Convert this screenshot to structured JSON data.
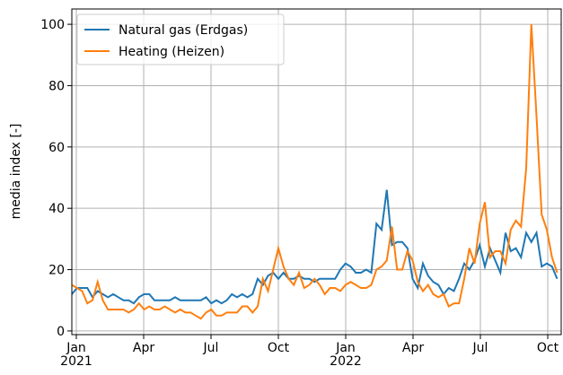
{
  "chart_data": {
    "type": "line",
    "ylabel": "media index [-]",
    "x": [
      -0.2,
      0.03,
      0.26,
      0.49,
      0.72,
      0.95,
      1.18,
      1.41,
      1.64,
      1.87,
      2.1,
      2.33,
      2.56,
      2.79,
      3.02,
      3.25,
      3.48,
      3.71,
      3.94,
      4.17,
      4.4,
      4.63,
      4.86,
      5.09,
      5.32,
      5.55,
      5.78,
      6.01,
      6.24,
      6.47,
      6.7,
      6.93,
      7.16,
      7.39,
      7.62,
      7.85,
      8.08,
      8.31,
      8.54,
      8.77,
      9.0,
      9.23,
      9.46,
      9.69,
      9.92,
      10.15,
      10.38,
      10.61,
      10.84,
      11.07,
      11.3,
      11.53,
      11.76,
      11.99,
      12.22,
      12.45,
      12.68,
      12.91,
      13.14,
      13.37,
      13.6,
      13.83,
      14.06,
      14.29,
      14.52,
      14.75,
      14.98,
      15.21,
      15.44,
      15.67,
      15.9,
      16.13,
      16.36,
      16.59,
      16.82,
      17.05,
      17.28,
      17.51,
      17.74,
      17.97,
      18.2,
      18.43,
      18.66,
      18.89,
      19.12,
      19.35,
      19.58,
      19.81,
      20.04,
      20.27,
      20.5,
      20.73,
      20.96,
      21.19,
      21.42
    ],
    "series": [
      {
        "name": "Natural gas (Erdgas)",
        "color": "#1f77b4",
        "values": [
          12,
          14,
          14,
          14,
          11,
          13,
          12,
          11,
          12,
          11,
          10,
          10,
          9,
          11,
          12,
          12,
          10,
          10,
          10,
          10,
          11,
          10,
          10,
          10,
          10,
          10,
          11,
          9,
          10,
          9,
          10,
          12,
          11,
          12,
          11,
          12,
          17,
          15,
          18,
          19,
          17,
          19,
          17,
          17,
          18,
          17,
          17,
          16,
          17,
          17,
          17,
          17,
          20,
          22,
          21,
          19,
          19,
          20,
          19,
          35,
          33,
          46,
          28,
          29,
          29,
          27,
          17,
          14,
          22,
          18,
          16,
          15,
          12,
          14,
          13,
          17,
          22,
          20,
          23,
          28,
          21,
          27,
          23,
          19,
          32,
          26,
          27,
          24,
          32,
          29,
          32,
          21,
          22,
          21,
          17
        ]
      },
      {
        "name": "Heating (Heizen)",
        "color": "#ff7f0e",
        "values": [
          15,
          14,
          13,
          9,
          10,
          16,
          10,
          7,
          7,
          7,
          7,
          6,
          7,
          9,
          7,
          8,
          7,
          7,
          8,
          7,
          6,
          7,
          6,
          6,
          5,
          4,
          6,
          7,
          5,
          5,
          6,
          6,
          6,
          8,
          8,
          6,
          8,
          17,
          13,
          20,
          27,
          21,
          17,
          15,
          19,
          14,
          15,
          17,
          15,
          12,
          14,
          14,
          13,
          15,
          16,
          15,
          14,
          14,
          15,
          20,
          21,
          23,
          34,
          20,
          20,
          26,
          23,
          16,
          13,
          15,
          12,
          11,
          12,
          8,
          9,
          9,
          17,
          27,
          22,
          35,
          42,
          24,
          26,
          26,
          22,
          33,
          36,
          34,
          53,
          100,
          70,
          38,
          33,
          24,
          19
        ]
      }
    ],
    "xlim": [
      -0.2,
      21.6
    ],
    "xticks": [
      {
        "value": 0,
        "label": "Jan\n2021"
      },
      {
        "value": 3,
        "label": "Apr"
      },
      {
        "value": 6,
        "label": "Jul"
      },
      {
        "value": 9,
        "label": "Oct"
      },
      {
        "value": 12,
        "label": "Jan\n2022"
      },
      {
        "value": 15,
        "label": "Apr"
      },
      {
        "value": 18,
        "label": "Jul"
      },
      {
        "value": 21,
        "label": "Oct"
      }
    ],
    "ylim": [
      -1.2,
      105
    ],
    "yticks": [
      0,
      20,
      40,
      60,
      80,
      100
    ],
    "grid": true,
    "legend": "upper left"
  }
}
